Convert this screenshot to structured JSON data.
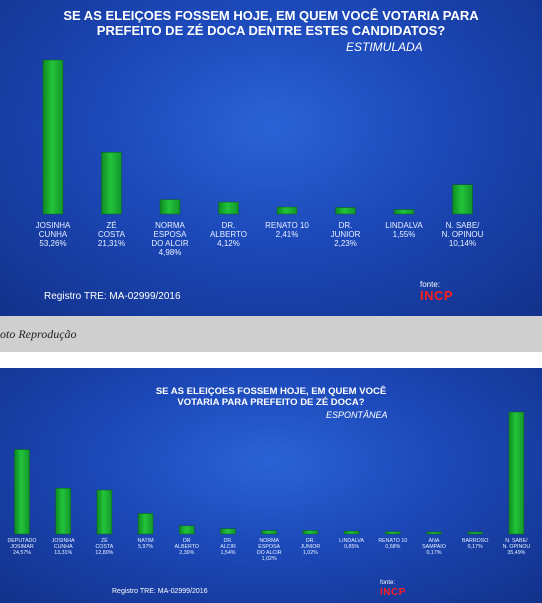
{
  "caption": "oto Reprodução",
  "chart_data": [
    {
      "type": "bar",
      "title": "SE AS ELEIÇOES FOSSEM HOJE, EM QUEM VOCÊ VOTARIA PARA PREFEITO DE ZÉ DOCA DENTRE ESTES CANDIDATOS?",
      "subtitle": "ESTIMULADA",
      "categories": [
        [
          "JOSINHA",
          "CUNHA"
        ],
        [
          "ZÉ",
          "COSTA"
        ],
        [
          "NORMA",
          "ESPOSA",
          "DO ALCIR"
        ],
        [
          "DR.",
          "ALBERTO"
        ],
        [
          "RENATO 10"
        ],
        [
          "DR.",
          "JUNIOR"
        ],
        [
          "LINDALVA"
        ],
        [
          "N. SABE/",
          "N. OPINOU"
        ]
      ],
      "value_labels": [
        "53,26%",
        "21,31%",
        "4,98%",
        "4,12%",
        "2,41%",
        "2,23%",
        "1,55%",
        "10,14%"
      ],
      "values": [
        53.26,
        21.31,
        4.98,
        4.12,
        2.41,
        2.23,
        1.55,
        10.14
      ],
      "bar_color": "#22c43a",
      "registro": "Registro TRE: MA-02999/2016",
      "fonte": "fonte:",
      "logo": "INCP"
    },
    {
      "type": "bar",
      "title": "SE AS ELEIÇOES FOSSEM HOJE, EM QUEM VOCÊ VOTARIA PARA PREFEITO DE ZÉ DOCA?",
      "subtitle": "ESPONTÂNEA",
      "categories": [
        [
          "DEPUTADO",
          "JOSIMAR"
        ],
        [
          "JOSINHA",
          "CUNHA"
        ],
        [
          "ZÉ",
          "COSTA"
        ],
        [
          "NATIM"
        ],
        [
          "DR",
          "ALBERTO"
        ],
        [
          "DR.",
          "ALCIR"
        ],
        [
          "NORMA",
          "ESPOSA",
          "DO ALCIR"
        ],
        [
          "DR.",
          "JUNIOR"
        ],
        [
          "LINDALVA"
        ],
        [
          "RENATO 10"
        ],
        [
          "ANA",
          "SAMPAIO"
        ],
        [
          "BARROSO"
        ],
        [
          "N. SABE/",
          "N. OPINOU"
        ]
      ],
      "value_labels": [
        "24,57%",
        "13,31%",
        "12,80%",
        "5,97%",
        "2,39%",
        "1,54%",
        "1,02%",
        "1,02%",
        "0,85%",
        "0,68%",
        "0,17%",
        "0,17%",
        "35,49%"
      ],
      "values": [
        24.57,
        13.31,
        12.8,
        5.97,
        2.39,
        1.54,
        1.02,
        1.02,
        0.85,
        0.68,
        0.17,
        0.17,
        35.49
      ],
      "bar_color": "#22c43a",
      "registro": "Registro TRE: MA-02999/2016",
      "fonte": "fonte:",
      "logo": "INCP"
    }
  ]
}
